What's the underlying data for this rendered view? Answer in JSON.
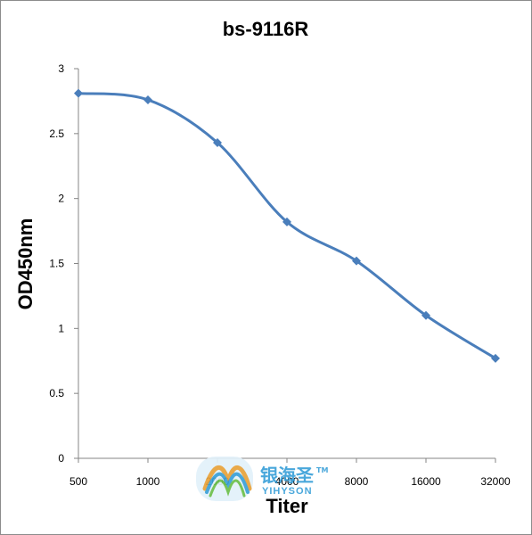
{
  "chart_data": {
    "type": "line",
    "title": "bs-9116R",
    "xlabel": "Titer",
    "ylabel": "OD450nm",
    "categories": [
      "500",
      "1000",
      "2000",
      "4000",
      "8000",
      "16000",
      "32000"
    ],
    "values": [
      2.81,
      2.76,
      2.43,
      1.82,
      1.52,
      1.1,
      0.77
    ],
    "ylim": [
      0,
      3
    ],
    "yticks": [
      "0",
      "0.5",
      "1",
      "1.5",
      "2",
      "2.5",
      "3"
    ],
    "grid": false,
    "legend": "none",
    "line_color": "#4a7ebb",
    "marker": "diamond"
  },
  "watermark": {
    "brand": "银海圣",
    "tm": "TM",
    "sub": "YIHYSON"
  }
}
